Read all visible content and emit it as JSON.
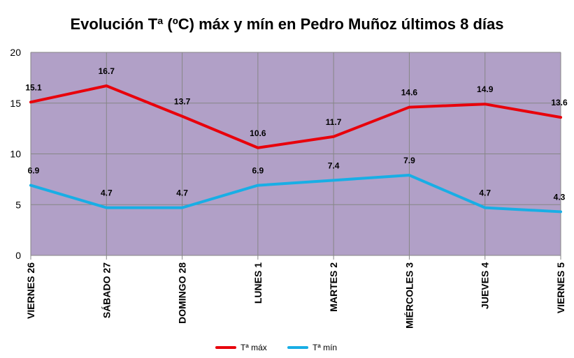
{
  "chart_data": {
    "type": "line",
    "title": "Evolución Tª (ºC) máx y mín en Pedro Muñoz últimos 8 días",
    "categories": [
      "VIERNES 26",
      "SÁBADO 27",
      "DOMINGO 28",
      "LUNES 1",
      "MARTES 2",
      "MIÉRCOLES 3",
      "JUEVES 4",
      "VIERNES 5"
    ],
    "series": [
      {
        "name": "Tª máx",
        "values": [
          15.1,
          16.7,
          13.7,
          10.6,
          11.7,
          14.6,
          14.9,
          13.6
        ],
        "color": "#e8000b"
      },
      {
        "name": "Tª mín",
        "values": [
          6.9,
          4.7,
          4.7,
          6.9,
          7.4,
          7.9,
          4.7,
          4.3
        ],
        "color": "#18aee5"
      }
    ],
    "ylim": [
      0,
      20
    ],
    "yticks": [
      0,
      5,
      10,
      15,
      20
    ],
    "grid": true,
    "legend": "bottom",
    "colors": {
      "plot_background": "#b1a0c7",
      "grid": "#868686"
    }
  }
}
